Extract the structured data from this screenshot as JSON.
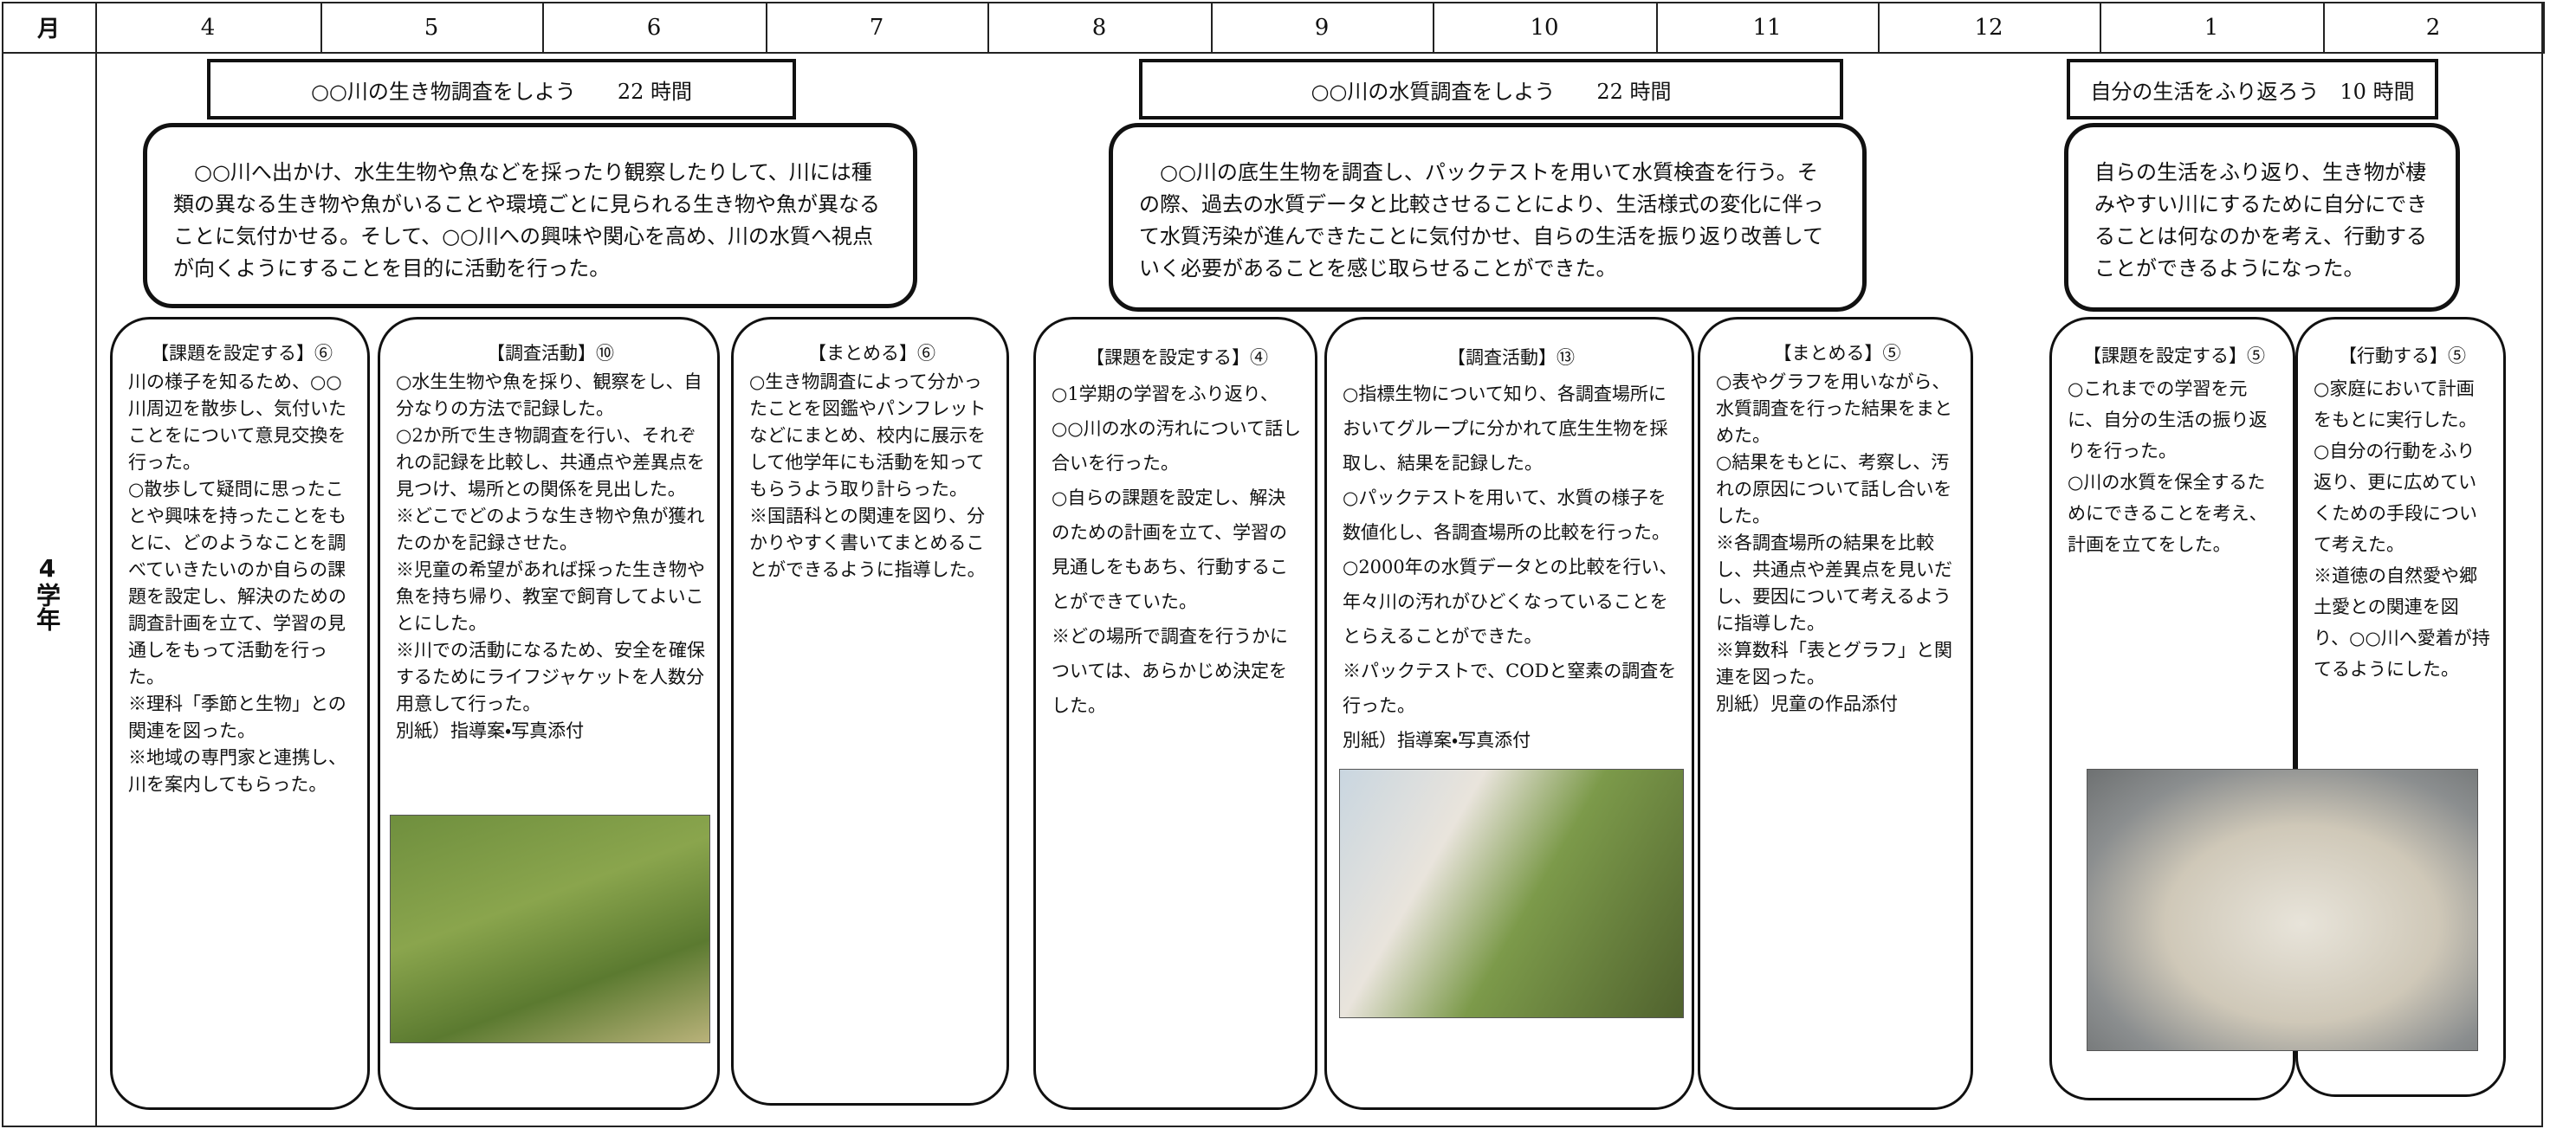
{
  "header": {
    "month_label": "月",
    "months": [
      "4",
      "5",
      "6",
      "7",
      "8",
      "9",
      "10",
      "11",
      "12",
      "1",
      "2"
    ]
  },
  "grade": "4学年",
  "units": [
    {
      "title": "○○川の生き物調査をしよう　　22 時間",
      "summary": "　○○川へ出かけ、水生生物や魚などを採ったり観察したりして、川には種類の異なる生き物や魚がいることや環境ごとに見られる生き物や魚が異なることに気付かせる。そして、○○川への興味や関心を高め、川の水質へ視点が向くようにすることを目的に活動を行った。",
      "activities": [
        {
          "heading": "【課題を設定する】⑥",
          "items": [
            "川の様子を知るため、○○川周辺を散歩し、気付いたことをについて意見交換を行った。",
            "○散歩して疑問に思ったことや興味を持ったことをもとに、どのようなことを調べていきたいのか自らの課題を設定し、解決のための調査計画を立て、学習の見通しをもって活動を行った。",
            "※理科「季節と生物」との関連を図った。",
            "※地域の専門家と連携し、川を案内してもらった。"
          ]
        },
        {
          "heading": "【調査活動】⑩",
          "items": [
            "○水生生物や魚を採り、観察をし、自分なりの方法で記録した。",
            "○2か所で生き物調査を行い、それぞれの記録を比較し、共通点や差異点を見つけ、場所との関係を見出した。",
            "※どこでどのような生き物や魚が獲れたのかを記録させた。",
            "※児童の希望があれば採った生き物や魚を持ち帰り、教室で飼育してよいことにした。",
            "※川での活動になるため、安全を確保するためにライフジャケットを人数分用意して行った。",
            "別紙）指導案・写真添付"
          ]
        },
        {
          "heading": "【まとめる】⑥",
          "items": [
            "○生き物調査によって分かったことを図鑑やパンフレットなどにまとめ、校内に展示をして他学年にも活動を知ってもらうよう取り計らった。",
            "※国語科との関連を図り、分かりやすく書いてまとめることができるように指導した。"
          ]
        }
      ]
    },
    {
      "title": "○○川の水質調査をしよう　　22 時間",
      "summary": "　○○川の底生生物を調査し、パックテストを用いて水質検査を行う。その際、過去の水質データと比較させることにより、生活様式の変化に伴って水質汚染が進んできたことに気付かせ、自らの生活を振り返り改善していく必要があることを感じ取らせることができた。",
      "activities": [
        {
          "heading": "【課題を設定する】④",
          "items": [
            "○1学期の学習をふり返り、○○川の水の汚れについて話し合いを行った。",
            "○自らの課題を設定し、解決のための計画を立て、学習の見通しをもあち、行動することができていた。",
            "※どの場所で調査を行うかについては、あらかじめ決定をした。"
          ]
        },
        {
          "heading": "【調査活動】⑬",
          "items": [
            "○指標生物について知り、各調査場所においてグループに分かれて底生生物を採取し、結果を記録した。",
            "○パックテストを用いて、水質の様子を数値化し、各調査場所の比較を行った。",
            "○2000年の水質データとの比較を行い、年々川の汚れがひどくなっていることをとらえることができた。",
            "※パックテストで、CODと窒素の調査を行った。",
            "別紙）指導案・写真添付"
          ]
        },
        {
          "heading": "【まとめる】⑤",
          "items": [
            "○表やグラフを用いながら、水質調査を行った結果をまとめた。",
            "○結果をもとに、考察し、汚れの原因について話し合いをした。",
            "※各調査場所の結果を比較し、共通点や差異点を見いだし、要因について考えるように指導した。",
            "※算数科「表とグラフ」と関連を図った。",
            "別紙）児童の作品添付"
          ]
        }
      ]
    },
    {
      "title": "自分の生活をふり返ろう　10 時間",
      "summary": "自らの生活をふり返り、生き物が棲みやすい川にするために自分にできることは何なのかを考え、行動することができるようになった。",
      "activities": [
        {
          "heading": "【課題を設定する】⑤",
          "items": [
            "○これまでの学習を元に、自分の生活の振り返りを行った。",
            "○川の水質を保全するためにできることを考え、計画を立てをした。"
          ]
        },
        {
          "heading": "【行動する】⑤",
          "items": [
            "○家庭において計画をもとに実行した。",
            "○自分の行動をふり返り、更に広めていくための手段について考えた。",
            "※道徳の自然愛や郷土愛との関連を図り、○○川へ愛着が持てるようにした。"
          ]
        }
      ]
    }
  ]
}
